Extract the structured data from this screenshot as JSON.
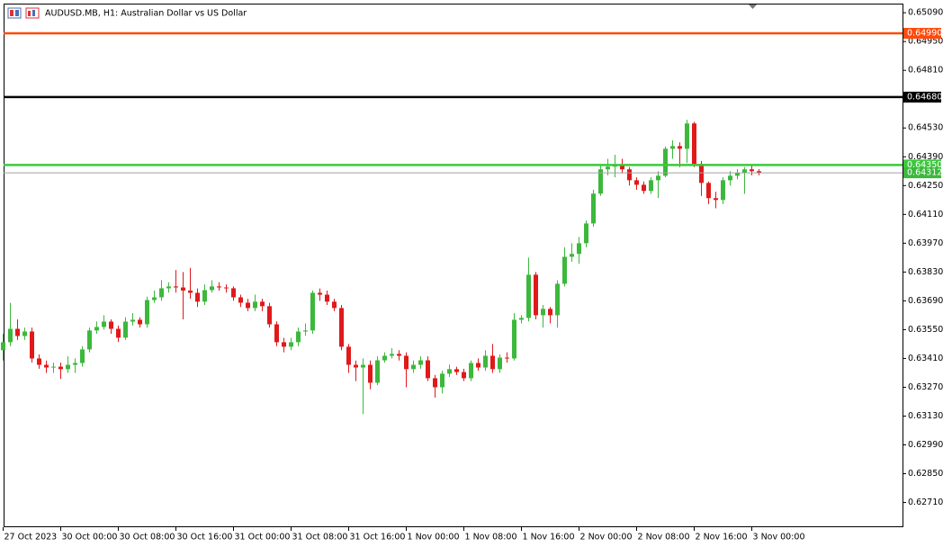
{
  "chart_data": {
    "type": "candlestick",
    "title": "AUDUSD.MB, H1:  Australian Dollar vs US Dollar",
    "categories": [
      "27 Oct 2023",
      null,
      null,
      null,
      null,
      null,
      null,
      null,
      "30 Oct 00:00",
      null,
      null,
      null,
      null,
      null,
      null,
      null,
      "30 Oct 08:00",
      null,
      null,
      null,
      null,
      null,
      null,
      null,
      "30 Oct 16:00",
      null,
      null,
      null,
      null,
      null,
      null,
      null,
      "31 Oct 00:00",
      null,
      null,
      null,
      null,
      null,
      null,
      null,
      "31 Oct 08:00",
      null,
      null,
      null,
      null,
      null,
      null,
      null,
      "31 Oct 16:00",
      null,
      null,
      null,
      null,
      null,
      null,
      null,
      "1 Nov 00:00",
      null,
      null,
      null,
      null,
      null,
      null,
      null,
      "1 Nov 08:00",
      null,
      null,
      null,
      null,
      null,
      null,
      null,
      "1 Nov 16:00",
      null,
      null,
      null,
      null,
      null,
      null,
      null,
      "2 Nov 00:00",
      null,
      null,
      null,
      null,
      null,
      null,
      null,
      "2 Nov 08:00",
      null,
      null,
      null,
      null,
      null,
      null,
      null,
      "2 Nov 16:00",
      null,
      null,
      null,
      null,
      null,
      null,
      null,
      "3 Nov 00:00",
      null
    ],
    "open": [
      0.6345,
      0.63489,
      0.63554,
      0.63519,
      0.63541,
      0.6341,
      0.63379,
      0.63366,
      0.6337,
      0.63358,
      0.63379,
      0.63388,
      0.63454,
      0.63546,
      0.63563,
      0.63589,
      0.63554,
      0.63511,
      0.63589,
      0.63598,
      0.63576,
      0.63694,
      0.63707,
      0.63751,
      0.6376,
      0.63755,
      0.6374,
      0.63729,
      0.63686,
      0.63742,
      0.6376,
      0.63755,
      0.63751,
      0.63707,
      0.63681,
      0.63655,
      0.63686,
      0.63664,
      0.63576,
      0.63489,
      0.63467,
      0.63489,
      0.63541,
      0.63546,
      0.63729,
      0.6372,
      0.63686,
      0.63655,
      0.63467,
      0.63379,
      0.63366,
      0.63379,
      0.63292,
      0.63401,
      0.63423,
      0.63432,
      0.63423,
      0.63358,
      0.63379,
      0.63401,
      0.63314,
      0.6327,
      0.63336,
      0.63358,
      0.63344,
      0.63314,
      0.63388,
      0.63366,
      0.63423,
      0.63358,
      0.63414,
      0.6341,
      0.63598,
      0.63607,
      0.63817,
      0.6362,
      0.63651,
      0.6362,
      0.63773,
      0.63904,
      0.63918,
      0.6397,
      0.64066,
      0.64211,
      0.64329,
      0.64342,
      0.64351,
      0.64329,
      0.64276,
      0.64254,
      0.64224,
      0.64276,
      0.64298,
      0.64429,
      0.64442,
      0.64429,
      0.64552,
      0.64355,
      0.64263,
      0.64189,
      0.6418,
      0.64276,
      0.64298,
      0.64311,
      0.64329,
      0.6432
    ],
    "high": [
      0.6353,
      0.6368,
      0.636,
      0.6356,
      0.6356,
      0.6343,
      0.634,
      0.6339,
      0.6339,
      0.6342,
      0.6341,
      0.6347,
      0.6356,
      0.6359,
      0.6362,
      0.636,
      0.6357,
      0.6361,
      0.6363,
      0.6361,
      0.6371,
      0.6374,
      0.6379,
      0.6378,
      0.6384,
      0.6383,
      0.6385,
      0.6375,
      0.6377,
      0.6379,
      0.6378,
      0.6377,
      0.6376,
      0.6372,
      0.637,
      0.6372,
      0.637,
      0.6368,
      0.6359,
      0.6351,
      0.6351,
      0.6356,
      0.6358,
      0.6374,
      0.6375,
      0.6374,
      0.637,
      0.6367,
      0.6348,
      0.634,
      0.6341,
      0.634,
      0.6342,
      0.6344,
      0.6346,
      0.6345,
      0.6344,
      0.634,
      0.6342,
      0.6342,
      0.6333,
      0.6335,
      0.6338,
      0.6337,
      0.6336,
      0.634,
      0.6341,
      0.6345,
      0.6348,
      0.6343,
      0.6344,
      0.6363,
      0.6362,
      0.639,
      0.6383,
      0.6367,
      0.6366,
      0.6379,
      0.6395,
      0.6397,
      0.64,
      0.6408,
      0.6423,
      0.6435,
      0.6438,
      0.644,
      0.6438,
      0.6434,
      0.6429,
      0.6427,
      0.6429,
      0.6432,
      0.6444,
      0.6447,
      0.6446,
      0.6457,
      0.6456,
      0.6437,
      0.6427,
      0.6422,
      0.6429,
      0.6432,
      0.6433,
      0.6434,
      0.6435,
      0.6433
    ],
    "low": [
      0.634,
      0.6347,
      0.635,
      0.635,
      0.6339,
      0.6336,
      0.6334,
      0.6334,
      0.6331,
      0.6334,
      0.6334,
      0.6337,
      0.6344,
      0.6353,
      0.6355,
      0.6353,
      0.6349,
      0.635,
      0.6357,
      0.6356,
      0.6356,
      0.6368,
      0.6369,
      0.6373,
      0.6373,
      0.636,
      0.637,
      0.6366,
      0.6367,
      0.6373,
      0.6374,
      0.6373,
      0.6369,
      0.6366,
      0.6364,
      0.6364,
      0.6364,
      0.6356,
      0.6347,
      0.6344,
      0.6345,
      0.6347,
      0.6352,
      0.6353,
      0.6369,
      0.6367,
      0.6364,
      0.6345,
      0.6334,
      0.633,
      0.6314,
      0.6326,
      0.6328,
      0.6339,
      0.6341,
      0.634,
      0.6327,
      0.6334,
      0.6336,
      0.633,
      0.6322,
      0.6324,
      0.6332,
      0.6333,
      0.633,
      0.633,
      0.6335,
      0.6335,
      0.6334,
      0.6334,
      0.6339,
      0.634,
      0.6358,
      0.6359,
      0.636,
      0.6356,
      0.6358,
      0.6356,
      0.6376,
      0.6388,
      0.6387,
      0.6395,
      0.6405,
      0.642,
      0.643,
      0.6429,
      0.6431,
      0.6425,
      0.6423,
      0.6421,
      0.6421,
      0.6419,
      0.6429,
      0.6438,
      0.6434,
      0.6436,
      0.6434,
      0.642,
      0.6416,
      0.6414,
      0.6416,
      0.6425,
      0.6428,
      0.6421,
      0.643,
      0.643
    ],
    "close": [
      0.63489,
      0.63554,
      0.63519,
      0.63541,
      0.6341,
      0.63379,
      0.63366,
      0.6337,
      0.63358,
      0.63379,
      0.63388,
      0.63454,
      0.63546,
      0.63563,
      0.63589,
      0.63554,
      0.63511,
      0.63589,
      0.63598,
      0.63576,
      0.63694,
      0.63707,
      0.63751,
      0.6376,
      0.63755,
      0.6374,
      0.63729,
      0.63686,
      0.63742,
      0.6376,
      0.63755,
      0.63751,
      0.63707,
      0.63681,
      0.63655,
      0.63686,
      0.63664,
      0.63576,
      0.63489,
      0.63467,
      0.63489,
      0.63541,
      0.63546,
      0.63729,
      0.6372,
      0.63686,
      0.63655,
      0.63467,
      0.63379,
      0.63366,
      0.63379,
      0.63292,
      0.63401,
      0.63423,
      0.63432,
      0.63423,
      0.63358,
      0.63379,
      0.63401,
      0.63314,
      0.6327,
      0.63336,
      0.63358,
      0.63344,
      0.63314,
      0.63388,
      0.63366,
      0.63423,
      0.63358,
      0.63414,
      0.6341,
      0.63598,
      0.63607,
      0.63817,
      0.6362,
      0.63651,
      0.6362,
      0.63773,
      0.63904,
      0.63918,
      0.6397,
      0.64066,
      0.64211,
      0.64329,
      0.64342,
      0.64351,
      0.64329,
      0.64276,
      0.64254,
      0.64224,
      0.64276,
      0.64298,
      0.64429,
      0.64442,
      0.64429,
      0.64552,
      0.64355,
      0.64263,
      0.64189,
      0.6418,
      0.64276,
      0.64298,
      0.64311,
      0.64329,
      0.6432,
      0.64312
    ],
    "up_color": "#3cb83c",
    "down_color": "#e0191b",
    "ylim": [
      0.6259,
      0.6513
    ],
    "yticks": [
      {
        "value": 0.6509,
        "label": "0.65090"
      },
      {
        "value": 0.6495,
        "label": "0.64950"
      },
      {
        "value": 0.6481,
        "label": "0.64810"
      },
      {
        "value": 0.6453,
        "label": "0.64530"
      },
      {
        "value": 0.6439,
        "label": "0.64390"
      },
      {
        "value": 0.6425,
        "label": "0.64250"
      },
      {
        "value": 0.6411,
        "label": "0.64110"
      },
      {
        "value": 0.6397,
        "label": "0.63970"
      },
      {
        "value": 0.6383,
        "label": "0.63830"
      },
      {
        "value": 0.6369,
        "label": "0.63690"
      },
      {
        "value": 0.6355,
        "label": "0.63550"
      },
      {
        "value": 0.6341,
        "label": "0.63410"
      },
      {
        "value": 0.6327,
        "label": "0.63270"
      },
      {
        "value": 0.6313,
        "label": "0.63130"
      },
      {
        "value": 0.6299,
        "label": "0.62990"
      },
      {
        "value": 0.6285,
        "label": "0.62850"
      },
      {
        "value": 0.6271,
        "label": "0.62710"
      }
    ],
    "price_lines": [
      {
        "value": 0.6499,
        "label": "0.64990",
        "color": "#ff4a0a"
      },
      {
        "value": 0.6468,
        "label": "0.64680",
        "color": "#000000"
      },
      {
        "value": 0.6435,
        "label": "0.64350",
        "color": "#3cc83c"
      },
      {
        "value": 0.64312,
        "label": "0.64312",
        "color": "#a0a0a0"
      }
    ]
  }
}
